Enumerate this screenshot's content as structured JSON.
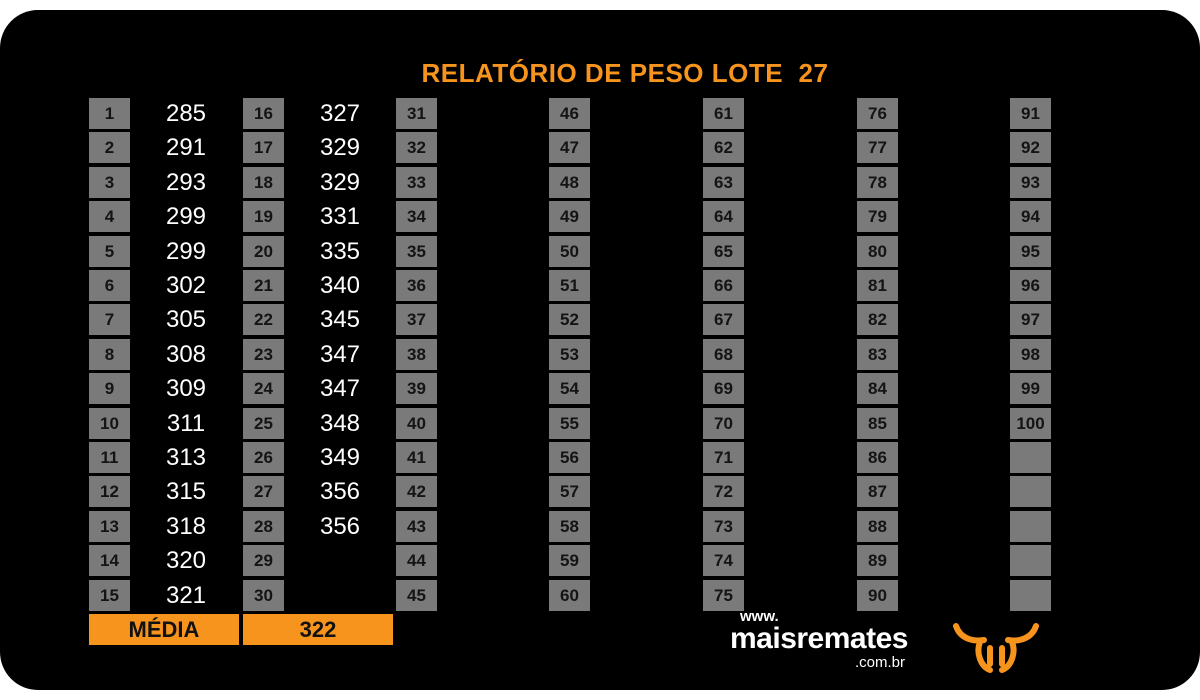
{
  "title": {
    "text": "RELATÓRIO DE PESO LOTE  27",
    "color": "#f7941d"
  },
  "grid": {
    "columns": [
      {
        "rows": [
          {
            "n": "1",
            "w": "285"
          },
          {
            "n": "2",
            "w": "291"
          },
          {
            "n": "3",
            "w": "293"
          },
          {
            "n": "4",
            "w": "299"
          },
          {
            "n": "5",
            "w": "299"
          },
          {
            "n": "6",
            "w": "302"
          },
          {
            "n": "7",
            "w": "305"
          },
          {
            "n": "8",
            "w": "308"
          },
          {
            "n": "9",
            "w": "309"
          },
          {
            "n": "10",
            "w": "311"
          },
          {
            "n": "11",
            "w": "313"
          },
          {
            "n": "12",
            "w": "315"
          },
          {
            "n": "13",
            "w": "318"
          },
          {
            "n": "14",
            "w": "320"
          },
          {
            "n": "15",
            "w": "321"
          }
        ]
      },
      {
        "rows": [
          {
            "n": "16",
            "w": "327"
          },
          {
            "n": "17",
            "w": "329"
          },
          {
            "n": "18",
            "w": "329"
          },
          {
            "n": "19",
            "w": "331"
          },
          {
            "n": "20",
            "w": "335"
          },
          {
            "n": "21",
            "w": "340"
          },
          {
            "n": "22",
            "w": "345"
          },
          {
            "n": "23",
            "w": "347"
          },
          {
            "n": "24",
            "w": "347"
          },
          {
            "n": "25",
            "w": "348"
          },
          {
            "n": "26",
            "w": "349"
          },
          {
            "n": "27",
            "w": "356"
          },
          {
            "n": "28",
            "w": "356"
          },
          {
            "n": "29",
            "w": ""
          },
          {
            "n": "30",
            "w": ""
          }
        ]
      },
      {
        "rows": [
          {
            "n": "31",
            "w": ""
          },
          {
            "n": "32",
            "w": ""
          },
          {
            "n": "33",
            "w": ""
          },
          {
            "n": "34",
            "w": ""
          },
          {
            "n": "35",
            "w": ""
          },
          {
            "n": "36",
            "w": ""
          },
          {
            "n": "37",
            "w": ""
          },
          {
            "n": "38",
            "w": ""
          },
          {
            "n": "39",
            "w": ""
          },
          {
            "n": "40",
            "w": ""
          },
          {
            "n": "41",
            "w": ""
          },
          {
            "n": "42",
            "w": ""
          },
          {
            "n": "43",
            "w": ""
          },
          {
            "n": "44",
            "w": ""
          },
          {
            "n": "45",
            "w": ""
          }
        ]
      },
      {
        "rows": [
          {
            "n": "46",
            "w": ""
          },
          {
            "n": "47",
            "w": ""
          },
          {
            "n": "48",
            "w": ""
          },
          {
            "n": "49",
            "w": ""
          },
          {
            "n": "50",
            "w": ""
          },
          {
            "n": "51",
            "w": ""
          },
          {
            "n": "52",
            "w": ""
          },
          {
            "n": "53",
            "w": ""
          },
          {
            "n": "54",
            "w": ""
          },
          {
            "n": "55",
            "w": ""
          },
          {
            "n": "56",
            "w": ""
          },
          {
            "n": "57",
            "w": ""
          },
          {
            "n": "58",
            "w": ""
          },
          {
            "n": "59",
            "w": ""
          },
          {
            "n": "60",
            "w": ""
          }
        ]
      },
      {
        "rows": [
          {
            "n": "61",
            "w": ""
          },
          {
            "n": "62",
            "w": ""
          },
          {
            "n": "63",
            "w": ""
          },
          {
            "n": "64",
            "w": ""
          },
          {
            "n": "65",
            "w": ""
          },
          {
            "n": "66",
            "w": ""
          },
          {
            "n": "67",
            "w": ""
          },
          {
            "n": "68",
            "w": ""
          },
          {
            "n": "69",
            "w": ""
          },
          {
            "n": "70",
            "w": ""
          },
          {
            "n": "71",
            "w": ""
          },
          {
            "n": "72",
            "w": ""
          },
          {
            "n": "73",
            "w": ""
          },
          {
            "n": "74",
            "w": ""
          },
          {
            "n": "75",
            "w": ""
          }
        ]
      },
      {
        "rows": [
          {
            "n": "76",
            "w": ""
          },
          {
            "n": "77",
            "w": ""
          },
          {
            "n": "78",
            "w": ""
          },
          {
            "n": "79",
            "w": ""
          },
          {
            "n": "80",
            "w": ""
          },
          {
            "n": "81",
            "w": ""
          },
          {
            "n": "82",
            "w": ""
          },
          {
            "n": "83",
            "w": ""
          },
          {
            "n": "84",
            "w": ""
          },
          {
            "n": "85",
            "w": ""
          },
          {
            "n": "86",
            "w": ""
          },
          {
            "n": "87",
            "w": ""
          },
          {
            "n": "88",
            "w": ""
          },
          {
            "n": "89",
            "w": ""
          },
          {
            "n": "90",
            "w": ""
          }
        ]
      },
      {
        "rows": [
          {
            "n": "91",
            "w": ""
          },
          {
            "n": "92",
            "w": ""
          },
          {
            "n": "93",
            "w": ""
          },
          {
            "n": "94",
            "w": ""
          },
          {
            "n": "95",
            "w": ""
          },
          {
            "n": "96",
            "w": ""
          },
          {
            "n": "97",
            "w": ""
          },
          {
            "n": "98",
            "w": ""
          },
          {
            "n": "99",
            "w": ""
          },
          {
            "n": "100",
            "w": ""
          },
          {
            "n": "",
            "w": ""
          },
          {
            "n": "",
            "w": ""
          },
          {
            "n": "",
            "w": ""
          },
          {
            "n": "",
            "w": ""
          },
          {
            "n": "",
            "w": ""
          }
        ]
      }
    ]
  },
  "summary": {
    "label": "MÉDIA",
    "value": "322"
  },
  "brand": {
    "www": "www.",
    "name": "maisremates",
    "domain": ".com.br",
    "logo_icon": "bull-head-icon",
    "accent": "#f7941d"
  }
}
